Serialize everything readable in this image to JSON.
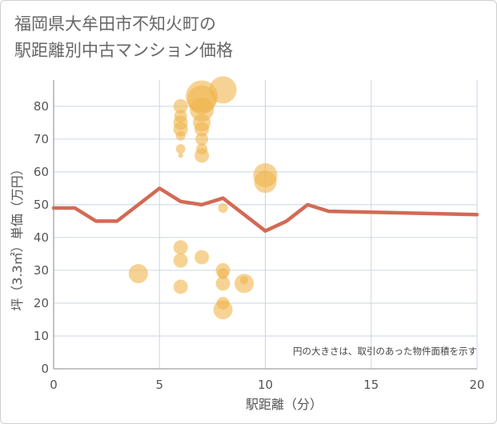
{
  "title": {
    "line1": "福岡県大牟田市不知火町の",
    "line2": "駅距離別中古マンション価格"
  },
  "colors": {
    "bubble": "#f0b64c",
    "line": "#d26a55",
    "grid": "#c9d6e3",
    "axis": "#8a8a8a",
    "text": "#555555"
  },
  "chart_data": {
    "type": "scatter",
    "xlabel": "駅距離（分）",
    "ylabel": "坪（3.3㎡）単価（万円）",
    "xlim": [
      0,
      20
    ],
    "ylim": [
      0,
      88
    ],
    "xticks": [
      0,
      5,
      10,
      15,
      20
    ],
    "yticks": [
      0,
      10,
      20,
      30,
      40,
      50,
      60,
      70,
      80
    ],
    "grid": true,
    "annotation": "円の大きさは、取引のあった物件面積を示す",
    "points": [
      {
        "x": 4,
        "y": 29,
        "size": 12
      },
      {
        "x": 6,
        "y": 80,
        "size": 9
      },
      {
        "x": 6,
        "y": 77,
        "size": 8
      },
      {
        "x": 6,
        "y": 75,
        "size": 9
      },
      {
        "x": 6,
        "y": 73,
        "size": 9
      },
      {
        "x": 6,
        "y": 71,
        "size": 6
      },
      {
        "x": 6,
        "y": 67,
        "size": 6
      },
      {
        "x": 6,
        "y": 65,
        "size": 3
      },
      {
        "x": 6,
        "y": 37,
        "size": 9
      },
      {
        "x": 6,
        "y": 33,
        "size": 9
      },
      {
        "x": 6,
        "y": 25,
        "size": 9
      },
      {
        "x": 7,
        "y": 83,
        "size": 20
      },
      {
        "x": 7,
        "y": 82,
        "size": 18
      },
      {
        "x": 7,
        "y": 79,
        "size": 15
      },
      {
        "x": 7,
        "y": 75,
        "size": 11
      },
      {
        "x": 7,
        "y": 73,
        "size": 9
      },
      {
        "x": 7,
        "y": 70,
        "size": 8
      },
      {
        "x": 7,
        "y": 67,
        "size": 7
      },
      {
        "x": 7,
        "y": 65,
        "size": 9
      },
      {
        "x": 7,
        "y": 34,
        "size": 9
      },
      {
        "x": 8,
        "y": 85,
        "size": 17
      },
      {
        "x": 8,
        "y": 49,
        "size": 6
      },
      {
        "x": 8,
        "y": 30,
        "size": 9
      },
      {
        "x": 8,
        "y": 29,
        "size": 7
      },
      {
        "x": 8,
        "y": 26,
        "size": 9
      },
      {
        "x": 8,
        "y": 20,
        "size": 8
      },
      {
        "x": 8,
        "y": 18,
        "size": 12
      },
      {
        "x": 9,
        "y": 26,
        "size": 12
      },
      {
        "x": 9,
        "y": 27,
        "size": 5
      },
      {
        "x": 10,
        "y": 59,
        "size": 15
      },
      {
        "x": 10,
        "y": 57,
        "size": 14
      }
    ],
    "trend": {
      "x": [
        0,
        1,
        2,
        3,
        4,
        5,
        6,
        7,
        8,
        9,
        10,
        11,
        12,
        13,
        20
      ],
      "y": [
        49,
        49,
        45,
        45,
        50,
        55,
        51,
        50,
        52,
        47,
        42,
        45,
        50,
        48,
        47
      ]
    }
  }
}
